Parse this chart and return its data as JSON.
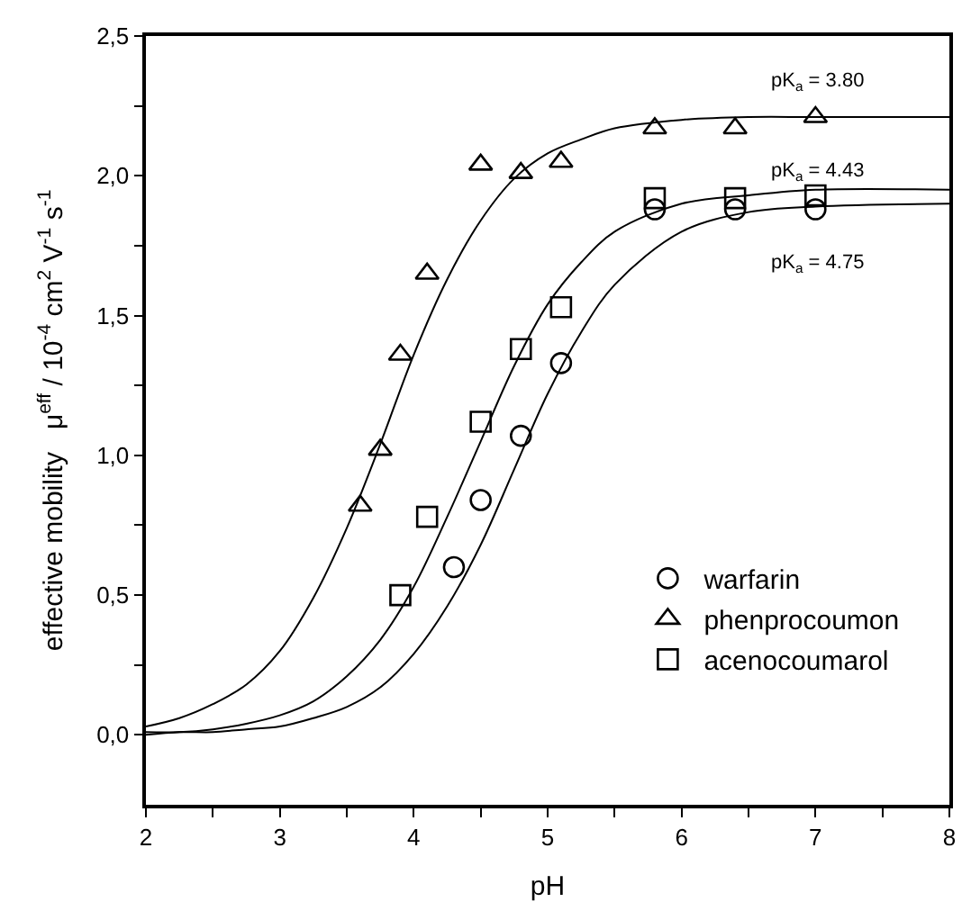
{
  "chart_data": {
    "type": "scatter",
    "xlabel": "pH",
    "ylabel": "effective mobility   μ$^{eff}$ / 10$^{-4}$ cm$^{2}$ V$^{-1}$ s$^{-1}$",
    "xlim": [
      2,
      8
    ],
    "xticks": [
      2,
      {
        "value": 2.5,
        "label": null
      },
      3,
      {
        "value": 3.5,
        "label": null
      },
      4,
      {
        "value": 4.5,
        "label": null
      },
      5,
      {
        "value": 5.5,
        "label": null
      },
      6,
      {
        "value": 6.5,
        "label": null
      },
      7,
      {
        "value": 7.5,
        "label": null
      },
      8
    ],
    "ylim": [
      -0.25,
      2.5
    ],
    "yticks": [
      {
        "value": 0,
        "label": "0,0"
      },
      {
        "value": 0.25,
        "label": null
      },
      {
        "value": 0.5,
        "label": "0,5"
      },
      {
        "value": 0.75,
        "label": null
      },
      {
        "value": 1.0,
        "label": "1,0"
      },
      {
        "value": 1.25,
        "label": null
      },
      {
        "value": 1.5,
        "label": "1,5"
      },
      {
        "value": 1.75,
        "label": null
      },
      {
        "value": 2.0,
        "label": "2,0"
      },
      {
        "value": 2.25,
        "label": null
      },
      {
        "value": 2.5,
        "label": "2,5"
      }
    ],
    "legend": "bottom right",
    "series": [
      {
        "name": "warfarin",
        "color": "#000000",
        "marker": "circle",
        "x": [
          4.3,
          4.5,
          4.8,
          5.1,
          5.8,
          6.4,
          7.0
        ],
        "values": [
          0.6,
          0.84,
          1.07,
          1.33,
          1.88,
          1.88,
          1.88
        ]
      },
      {
        "name": "phenprocoumon",
        "color": "#000000",
        "marker": "triangle",
        "x": [
          3.6,
          3.75,
          3.9,
          4.1,
          4.5,
          4.8,
          5.1,
          5.8,
          6.4,
          7.0
        ],
        "values": [
          0.82,
          1.02,
          1.36,
          1.65,
          2.04,
          2.01,
          2.05,
          2.17,
          2.17,
          2.21
        ]
      },
      {
        "name": "acenocoumarol",
        "color": "#000000",
        "marker": "square",
        "x": [
          3.9,
          4.1,
          4.5,
          4.8,
          5.1,
          5.8,
          6.4,
          7.0
        ],
        "values": [
          0.5,
          0.78,
          1.12,
          1.38,
          1.53,
          1.92,
          1.92,
          1.93
        ]
      },
      {
        "type": "line",
        "color": "#000000",
        "line_style": "solid",
        "x": [
          2,
          2.25,
          2.5,
          2.75,
          3,
          3.25,
          3.5,
          3.75,
          4,
          4.25,
          4.5,
          4.75,
          5,
          5.25,
          5.5,
          6,
          6.5,
          7,
          8
        ],
        "values": [
          0.03,
          0.06,
          0.11,
          0.18,
          0.3,
          0.49,
          0.74,
          1.04,
          1.36,
          1.63,
          1.84,
          1.99,
          2.08,
          2.13,
          2.17,
          2.2,
          2.21,
          2.21,
          2.21
        ]
      },
      {
        "type": "line",
        "color": "#000000",
        "line_style": "solid",
        "x": [
          2,
          2.25,
          2.5,
          2.75,
          3,
          3.25,
          3.5,
          3.75,
          4,
          4.25,
          4.5,
          4.75,
          5,
          5.25,
          5.5,
          6,
          6.5,
          7,
          8
        ],
        "values": [
          0.01,
          0.01,
          0.02,
          0.04,
          0.07,
          0.12,
          0.21,
          0.34,
          0.53,
          0.78,
          1.05,
          1.32,
          1.54,
          1.69,
          1.8,
          1.9,
          1.93,
          1.95,
          1.95
        ]
      },
      {
        "type": "line",
        "color": "#000000",
        "line_style": "solid",
        "x": [
          2,
          2.25,
          2.5,
          2.75,
          3,
          3.25,
          3.5,
          3.75,
          4,
          4.25,
          4.5,
          4.75,
          5,
          5.25,
          5.5,
          6,
          6.5,
          7,
          8
        ],
        "values": [
          0.0,
          0.01,
          0.01,
          0.02,
          0.03,
          0.06,
          0.1,
          0.17,
          0.29,
          0.46,
          0.68,
          0.95,
          1.22,
          1.44,
          1.61,
          1.8,
          1.87,
          1.89,
          1.9
        ]
      }
    ],
    "annotations": [
      "pK$_{a}$ = 3.80",
      "pK$_{a}$ = 4.43",
      "pK$_{a}$ = 4.75"
    ]
  }
}
